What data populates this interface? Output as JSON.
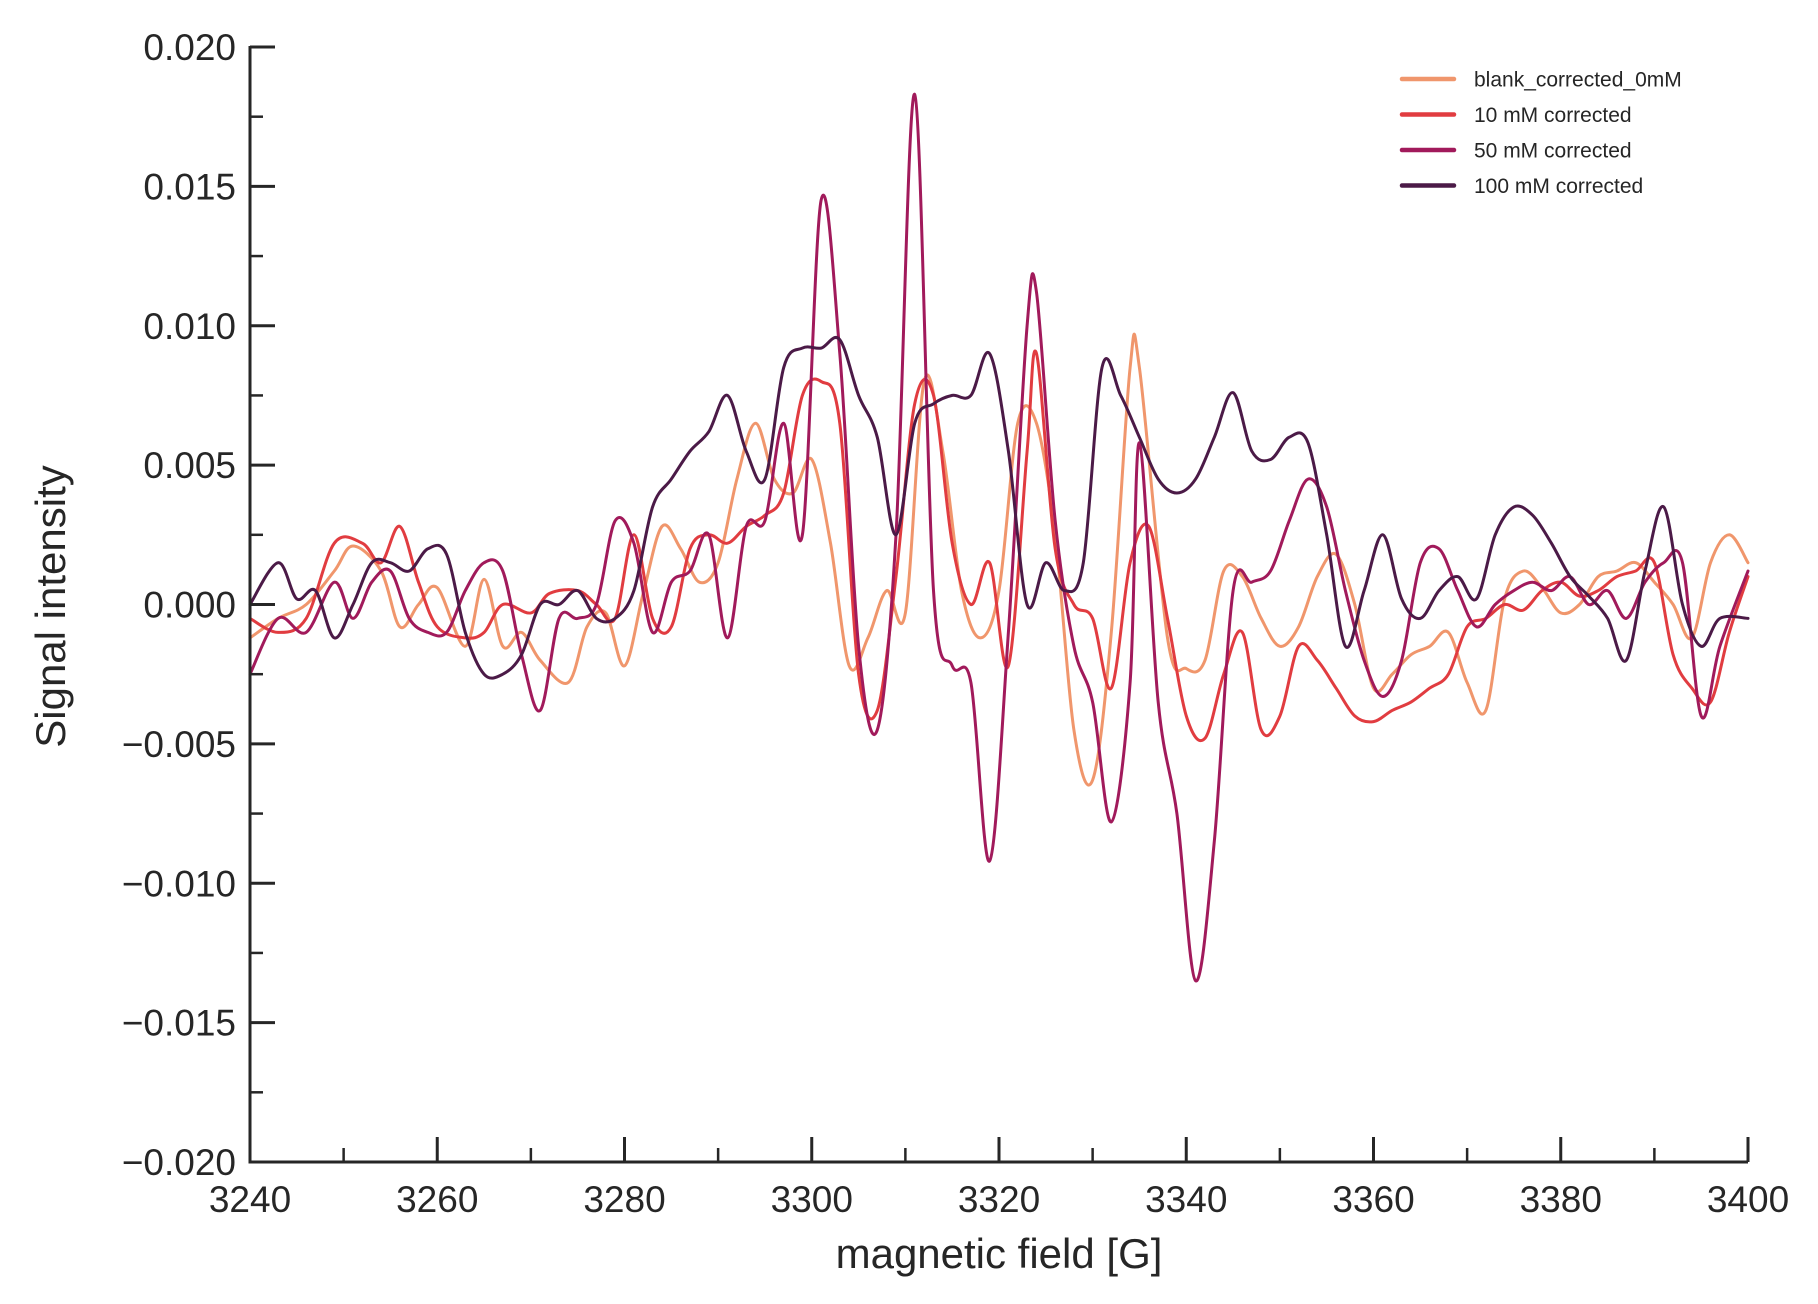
{
  "chart_data": {
    "type": "line",
    "title": "",
    "xlabel": "magnetic field [G]",
    "ylabel": "Signal intensity",
    "xlim": [
      3240,
      3400
    ],
    "ylim": [
      -0.02,
      0.02
    ],
    "xticks": [
      3240,
      3260,
      3280,
      3300,
      3320,
      3340,
      3360,
      3380,
      3400
    ],
    "xticks_minor": [
      3250,
      3270,
      3290,
      3310,
      3330,
      3350,
      3370,
      3390
    ],
    "yticks": [
      -0.02,
      -0.015,
      -0.01,
      -0.005,
      0.0,
      0.005,
      0.01,
      0.015,
      0.02
    ],
    "xtick_labels": [
      "3240",
      "3260",
      "3280",
      "3300",
      "3320",
      "3340",
      "3360",
      "3380",
      "3400"
    ],
    "ytick_labels": [
      "−0.020",
      "−0.015",
      "−0.010",
      "−0.005",
      "0.000",
      "0.005",
      "0.010",
      "0.015",
      "0.020"
    ],
    "grid": false,
    "legend_position": "top-right",
    "series": [
      {
        "name": "blank_corrected_0mM",
        "color": "#f0966c",
        "x": [
          3240,
          3243,
          3246,
          3249,
          3251,
          3254,
          3256,
          3258,
          3260,
          3263,
          3265,
          3267,
          3269,
          3271,
          3274,
          3276,
          3278,
          3280,
          3282,
          3284,
          3286,
          3288,
          3290,
          3292,
          3294,
          3296,
          3298,
          3300,
          3302,
          3304,
          3306,
          3308,
          3310,
          3312,
          3314,
          3316,
          3318,
          3320,
          3322,
          3324,
          3326,
          3328,
          3330,
          3332,
          3334,
          3335,
          3338,
          3340,
          3342,
          3344,
          3346,
          3348,
          3350,
          3352,
          3354,
          3356,
          3358,
          3360,
          3362,
          3364,
          3366,
          3368,
          3370,
          3372,
          3374,
          3376,
          3378,
          3380,
          3382,
          3384,
          3386,
          3388,
          3390,
          3392,
          3394,
          3396,
          3398,
          3400
        ],
        "y": [
          -0.0012,
          -0.0005,
          0.0,
          0.0012,
          0.0021,
          0.0012,
          -0.0008,
          0.0,
          0.0006,
          -0.0015,
          0.0009,
          -0.0015,
          -0.001,
          -0.002,
          -0.0028,
          -0.0008,
          -0.0003,
          -0.0022,
          0.0004,
          0.0028,
          0.002,
          0.0008,
          0.0015,
          0.0045,
          0.0065,
          0.0045,
          0.004,
          0.0052,
          0.0022,
          -0.0022,
          -0.0012,
          0.0005,
          -0.0003,
          0.008,
          0.0055,
          0.0005,
          -0.0012,
          0.0005,
          0.0065,
          0.0065,
          0.0025,
          -0.0045,
          -0.0063,
          -0.001,
          0.0085,
          0.0085,
          -0.0012,
          -0.0023,
          -0.002,
          0.0012,
          0.001,
          -0.0005,
          -0.0015,
          -0.0008,
          0.001,
          0.0018,
          0.0,
          -0.003,
          -0.0025,
          -0.0018,
          -0.0015,
          -0.001,
          -0.0028,
          -0.0038,
          0.0002,
          0.0012,
          0.0006,
          -0.0003,
          0.0,
          0.001,
          0.0012,
          0.0015,
          0.0008,
          0.0,
          -0.0012,
          0.0015,
          0.0025,
          0.0015
        ]
      },
      {
        "name": "10 mM corrected",
        "color": "#e13c40",
        "x": [
          3240,
          3243,
          3246,
          3249,
          3252,
          3254,
          3256,
          3258,
          3260,
          3263,
          3265,
          3267,
          3270,
          3272,
          3275,
          3277,
          3279,
          3281,
          3283,
          3285,
          3287,
          3289,
          3291,
          3293,
          3295,
          3297,
          3299,
          3301,
          3303,
          3305,
          3307,
          3309,
          3311,
          3313,
          3315,
          3317,
          3319,
          3321,
          3323,
          3324,
          3326,
          3328,
          3330,
          3332,
          3334,
          3336,
          3338,
          3340,
          3342,
          3344,
          3346,
          3348,
          3350,
          3352,
          3354,
          3356,
          3358,
          3360,
          3362,
          3364,
          3366,
          3368,
          3370,
          3372,
          3374,
          3376,
          3378,
          3380,
          3382,
          3384,
          3386,
          3388,
          3390,
          3392,
          3394,
          3396,
          3398,
          3400
        ],
        "y": [
          -0.0005,
          -0.001,
          -0.0005,
          0.0022,
          0.0022,
          0.0015,
          0.0028,
          0.0008,
          -0.0008,
          -0.0012,
          -0.001,
          0.0,
          -0.0003,
          0.0004,
          0.0005,
          0.0,
          -0.0005,
          0.0025,
          -0.0005,
          -0.0008,
          0.002,
          0.0025,
          0.0022,
          0.0028,
          0.0032,
          0.004,
          0.0075,
          0.008,
          0.0065,
          -0.0025,
          -0.0038,
          0.001,
          0.0072,
          0.0075,
          0.0022,
          0.0,
          0.0015,
          -0.0022,
          0.0055,
          0.009,
          0.002,
          0.0,
          -0.0005,
          -0.003,
          0.0015,
          0.0028,
          -0.0005,
          -0.004,
          -0.0048,
          -0.0025,
          -0.001,
          -0.0045,
          -0.004,
          -0.0015,
          -0.002,
          -0.003,
          -0.004,
          -0.0042,
          -0.0038,
          -0.0035,
          -0.003,
          -0.0025,
          -0.0008,
          -0.0005,
          0.0,
          -0.0002,
          0.0005,
          0.0008,
          0.0003,
          0.0005,
          0.001,
          0.0012,
          0.0015,
          -0.0018,
          -0.003,
          -0.0035,
          -0.001,
          0.001
        ]
      },
      {
        "name": "50 mM corrected",
        "color": "#a11a5b",
        "x": [
          3240,
          3243,
          3246,
          3249,
          3251,
          3253,
          3255,
          3257,
          3259,
          3261,
          3263,
          3265,
          3267,
          3269,
          3271,
          3273,
          3275,
          3277,
          3279,
          3281,
          3283,
          3285,
          3287,
          3289,
          3291,
          3293,
          3295,
          3297,
          3299,
          3301,
          3303,
          3305,
          3307,
          3309,
          3311,
          3313,
          3315,
          3317,
          3319,
          3321,
          3323,
          3324,
          3326,
          3328,
          3330,
          3332,
          3334,
          3335,
          3337,
          3339,
          3341,
          3343,
          3345,
          3347,
          3349,
          3351,
          3353,
          3355,
          3357,
          3359,
          3361,
          3363,
          3365,
          3367,
          3369,
          3371,
          3373,
          3375,
          3377,
          3379,
          3381,
          3383,
          3385,
          3387,
          3389,
          3391,
          3393,
          3395,
          3397,
          3400
        ],
        "y": [
          -0.0025,
          -0.0005,
          -0.001,
          0.0008,
          -0.0005,
          0.0008,
          0.0012,
          -0.0005,
          -0.001,
          -0.001,
          0.0005,
          0.0015,
          0.0012,
          -0.0018,
          -0.0038,
          -0.0005,
          -0.0005,
          0.0,
          0.003,
          0.0022,
          -0.001,
          0.0008,
          0.0012,
          0.0025,
          -0.0012,
          0.0028,
          0.003,
          0.0065,
          0.0025,
          0.0145,
          0.009,
          -0.0015,
          -0.0045,
          0.0025,
          0.0183,
          0.0005,
          -0.0022,
          -0.0028,
          -0.0092,
          -0.001,
          0.01,
          0.0112,
          0.003,
          -0.0015,
          -0.0035,
          -0.0078,
          -0.0028,
          0.0058,
          -0.0035,
          -0.0075,
          -0.0135,
          -0.0085,
          0.0005,
          0.0008,
          0.0012,
          0.003,
          0.0045,
          0.0035,
          0.0005,
          -0.002,
          -0.0033,
          -0.002,
          0.0015,
          0.002,
          0.0005,
          -0.0008,
          0.0,
          0.0005,
          0.0008,
          0.0005,
          0.001,
          0.0,
          0.0005,
          -0.0005,
          0.0008,
          0.0015,
          0.0015,
          -0.004,
          -0.0015,
          0.0012
        ]
      },
      {
        "name": "100 mM corrected",
        "color": "#4b1a47",
        "x": [
          3240,
          3243,
          3245,
          3247,
          3249,
          3251,
          3253,
          3255,
          3257,
          3259,
          3261,
          3263,
          3265,
          3267,
          3269,
          3271,
          3273,
          3275,
          3277,
          3279,
          3281,
          3283,
          3285,
          3287,
          3289,
          3291,
          3293,
          3295,
          3297,
          3299,
          3301,
          3303,
          3305,
          3307,
          3309,
          3311,
          3313,
          3315,
          3317,
          3319,
          3321,
          3323,
          3325,
          3327,
          3329,
          3331,
          3333,
          3335,
          3337,
          3339,
          3341,
          3343,
          3345,
          3347,
          3349,
          3351,
          3353,
          3355,
          3357,
          3359,
          3361,
          3363,
          3365,
          3367,
          3369,
          3371,
          3373,
          3375,
          3377,
          3379,
          3381,
          3383,
          3385,
          3387,
          3389,
          3391,
          3393,
          3395,
          3397,
          3400
        ],
        "y": [
          0.0,
          0.0015,
          0.0002,
          0.0005,
          -0.0012,
          0.0,
          0.0015,
          0.0015,
          0.0012,
          0.002,
          0.0018,
          -0.001,
          -0.0025,
          -0.0025,
          -0.0018,
          0.0,
          0.0,
          0.0005,
          -0.0005,
          -0.0005,
          0.0005,
          0.0035,
          0.0045,
          0.0055,
          0.0062,
          0.0075,
          0.0055,
          0.0045,
          0.0085,
          0.0092,
          0.0092,
          0.0095,
          0.0075,
          0.006,
          0.0025,
          0.0065,
          0.0072,
          0.0075,
          0.0075,
          0.009,
          0.0055,
          0.0,
          0.0015,
          0.0005,
          0.0015,
          0.0085,
          0.0075,
          0.006,
          0.0045,
          0.004,
          0.0045,
          0.006,
          0.0076,
          0.0055,
          0.0052,
          0.006,
          0.0058,
          0.0025,
          -0.0015,
          0.0005,
          0.0025,
          0.0002,
          -0.0005,
          0.0005,
          0.001,
          0.0002,
          0.0025,
          0.0035,
          0.0032,
          0.0022,
          0.001,
          0.0003,
          -0.0005,
          -0.002,
          0.0012,
          0.0035,
          0.0,
          -0.0015,
          -0.0005,
          -0.0005
        ]
      }
    ]
  }
}
